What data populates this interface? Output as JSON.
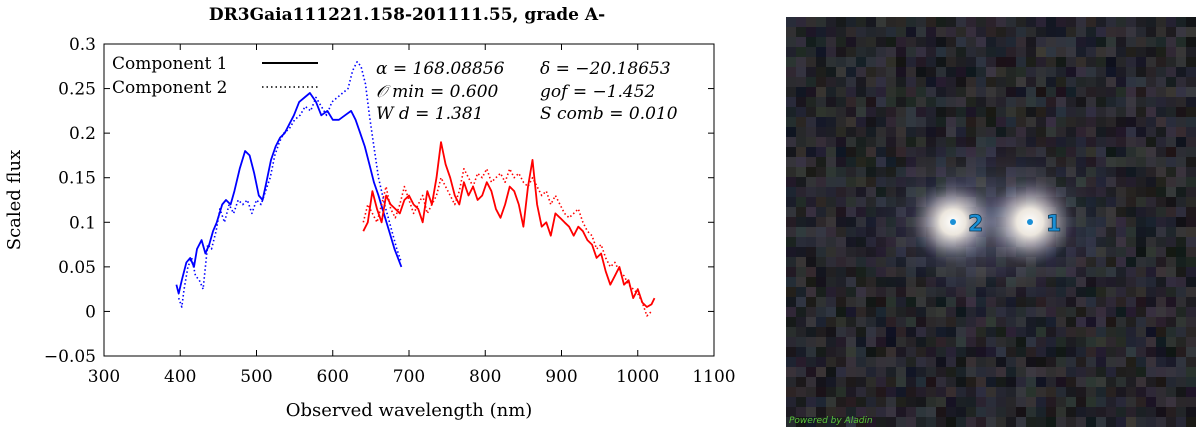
{
  "chart_data": {
    "type": "line",
    "title": "DR3Gaia111221.158-201111.55, grade A-",
    "xlabel": "Observed wavelength (nm)",
    "ylabel": "Scaled flux",
    "xlim": [
      300,
      1100
    ],
    "ylim": [
      -0.05,
      0.3
    ],
    "xticks": [
      300,
      400,
      500,
      600,
      700,
      800,
      900,
      1000,
      1100
    ],
    "yticks": [
      -0.05,
      0,
      0.05,
      0.1,
      0.15,
      0.2,
      0.25,
      0.3
    ],
    "xtick_labels": [
      "300",
      "400",
      "500",
      "600",
      "700",
      "800",
      "900",
      "1000",
      "1100"
    ],
    "ytick_labels": [
      "−0.05",
      "0",
      "0.05",
      "0.1",
      "0.15",
      "0.2",
      "0.25",
      "0.3"
    ],
    "grid": false,
    "legend_position": "top-left",
    "legend": [
      {
        "label": "Component 1",
        "style": "solid"
      },
      {
        "label": "Component 2",
        "style": "dotted"
      }
    ],
    "annotations": [
      {
        "text": "α = 168.08856"
      },
      {
        "text": "δ = −20.18653"
      },
      {
        "text": "𝒪 min = 0.600"
      },
      {
        "text": "gof = −1.452"
      },
      {
        "text": "W d = 1.381"
      },
      {
        "text": "S comb = 0.010"
      }
    ],
    "colors": {
      "blue": "#0000ff",
      "red": "#ff0000"
    },
    "series": [
      {
        "component": 1,
        "part": "blue",
        "color": "#0000ff",
        "style": "solid",
        "x": [
          395,
          398,
          402,
          408,
          413,
          418,
          422,
          428,
          433,
          438,
          443,
          448,
          455,
          460,
          466,
          471,
          478,
          485,
          491,
          497,
          503,
          508,
          513,
          519,
          525,
          531,
          537,
          543,
          549,
          556,
          563,
          570,
          578,
          585,
          593,
          600,
          608,
          616,
          624,
          630,
          636,
          642,
          648,
          654,
          660,
          667,
          674,
          681,
          690
        ],
        "y": [
          0.03,
          0.02,
          0.035,
          0.055,
          0.06,
          0.05,
          0.07,
          0.08,
          0.065,
          0.075,
          0.09,
          0.1,
          0.12,
          0.125,
          0.12,
          0.135,
          0.16,
          0.18,
          0.175,
          0.155,
          0.13,
          0.125,
          0.145,
          0.17,
          0.185,
          0.195,
          0.2,
          0.21,
          0.22,
          0.235,
          0.24,
          0.245,
          0.235,
          0.22,
          0.225,
          0.215,
          0.215,
          0.22,
          0.225,
          0.215,
          0.2,
          0.185,
          0.165,
          0.145,
          0.13,
          0.11,
          0.09,
          0.07,
          0.05
        ]
      },
      {
        "component": 2,
        "part": "blue",
        "color": "#0000ff",
        "style": "dotted",
        "x": [
          398,
          402,
          405,
          410,
          415,
          420,
          425,
          430,
          436,
          441,
          447,
          452,
          458,
          464,
          470,
          476,
          482,
          488,
          494,
          500,
          506,
          512,
          518,
          524,
          530,
          536,
          543,
          550,
          557,
          564,
          571,
          578,
          585,
          592,
          599,
          606,
          613,
          620,
          626,
          632,
          637,
          643,
          648,
          654,
          660,
          668,
          676,
          684,
          690
        ],
        "y": [
          0.015,
          0.005,
          0.025,
          0.05,
          0.06,
          0.04,
          0.035,
          0.025,
          0.075,
          0.07,
          0.09,
          0.115,
          0.1,
          0.12,
          0.11,
          0.125,
          0.12,
          0.125,
          0.11,
          0.125,
          0.12,
          0.135,
          0.15,
          0.175,
          0.19,
          0.2,
          0.205,
          0.215,
          0.22,
          0.23,
          0.225,
          0.24,
          0.23,
          0.22,
          0.235,
          0.24,
          0.245,
          0.25,
          0.27,
          0.28,
          0.275,
          0.255,
          0.22,
          0.185,
          0.15,
          0.12,
          0.095,
          0.07,
          0.055
        ]
      },
      {
        "component": 1,
        "part": "red",
        "color": "#ff0000",
        "style": "solid",
        "x": [
          640,
          646,
          652,
          658,
          664,
          670,
          676,
          682,
          688,
          694,
          700,
          706,
          712,
          718,
          724,
          730,
          736,
          742,
          748,
          754,
          760,
          766,
          772,
          778,
          784,
          790,
          796,
          802,
          808,
          814,
          820,
          826,
          832,
          838,
          844,
          850,
          856,
          862,
          868,
          874,
          880,
          886,
          892,
          898,
          904,
          910,
          916,
          922,
          928,
          934,
          940,
          946,
          952,
          958,
          964,
          970,
          976,
          982,
          988,
          994,
          1000,
          1006,
          1012,
          1018,
          1022
        ],
        "y": [
          0.09,
          0.1,
          0.135,
          0.115,
          0.1,
          0.13,
          0.12,
          0.115,
          0.11,
          0.125,
          0.13,
          0.12,
          0.115,
          0.1,
          0.135,
          0.12,
          0.15,
          0.19,
          0.165,
          0.15,
          0.13,
          0.12,
          0.145,
          0.13,
          0.14,
          0.125,
          0.13,
          0.145,
          0.135,
          0.115,
          0.105,
          0.12,
          0.14,
          0.135,
          0.12,
          0.095,
          0.14,
          0.17,
          0.12,
          0.095,
          0.1,
          0.085,
          0.11,
          0.105,
          0.1,
          0.095,
          0.085,
          0.095,
          0.09,
          0.08,
          0.075,
          0.06,
          0.065,
          0.045,
          0.03,
          0.04,
          0.05,
          0.03,
          0.035,
          0.015,
          0.025,
          0.01,
          0.005,
          0.008,
          0.015
        ]
      },
      {
        "component": 2,
        "part": "red",
        "color": "#ff0000",
        "style": "dotted",
        "x": [
          640,
          646,
          652,
          658,
          664,
          670,
          676,
          682,
          688,
          694,
          700,
          706,
          712,
          718,
          724,
          730,
          736,
          742,
          748,
          754,
          760,
          766,
          772,
          778,
          784,
          790,
          796,
          802,
          808,
          814,
          820,
          826,
          832,
          838,
          844,
          850,
          856,
          862,
          868,
          874,
          880,
          886,
          892,
          898,
          904,
          910,
          916,
          922,
          928,
          934,
          940,
          946,
          952,
          958,
          964,
          970,
          976,
          982,
          988,
          994,
          1000,
          1006,
          1012,
          1018
        ],
        "y": [
          0.1,
          0.12,
          0.11,
          0.1,
          0.12,
          0.14,
          0.115,
          0.105,
          0.12,
          0.14,
          0.125,
          0.11,
          0.12,
          0.13,
          0.11,
          0.12,
          0.13,
          0.15,
          0.14,
          0.13,
          0.12,
          0.135,
          0.16,
          0.15,
          0.14,
          0.155,
          0.15,
          0.16,
          0.145,
          0.15,
          0.155,
          0.145,
          0.16,
          0.15,
          0.155,
          0.145,
          0.14,
          0.15,
          0.14,
          0.13,
          0.135,
          0.12,
          0.13,
          0.12,
          0.11,
          0.105,
          0.11,
          0.115,
          0.1,
          0.09,
          0.085,
          0.07,
          0.075,
          0.06,
          0.05,
          0.055,
          0.045,
          0.04,
          0.03,
          0.025,
          0.02,
          0.01,
          -0.005,
          0.0
        ]
      }
    ]
  },
  "sky_image": {
    "source_labels": [
      {
        "text": "1"
      },
      {
        "text": "2"
      }
    ],
    "credit": "Powered by Aladin",
    "marker_color": "#1a8fd6"
  }
}
